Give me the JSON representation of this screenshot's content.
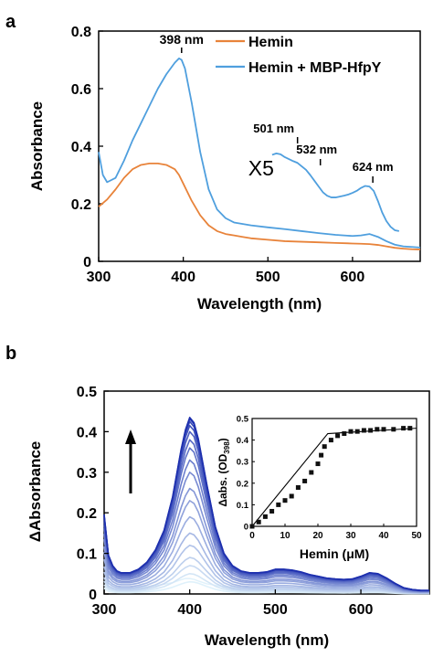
{
  "panel_labels": [
    "a",
    "b"
  ],
  "colors": {
    "hemin": "#e8833a",
    "complex": "#4f9fde",
    "titration_start": "#dff1fb",
    "titration_end": "#1d2fae",
    "inset_points": "#111111",
    "axis": "#000000"
  },
  "chart_data": [
    {
      "id": "panel-a",
      "type": "line",
      "xlabel": "Wavelength (nm)",
      "ylabel": "Absorbance",
      "xlim": [
        300,
        680
      ],
      "ylim": [
        0,
        0.8
      ],
      "xticks": [
        300,
        400,
        500,
        600
      ],
      "yticks": [
        0,
        0.2,
        0.4,
        0.6,
        0.8
      ],
      "ytick_labels": [
        "0",
        "0.2",
        "0.4",
        "0.6",
        "0.8"
      ],
      "grid": false,
      "legend_position": "top-right",
      "series": [
        {
          "name": "Hemin",
          "x": [
            300,
            310,
            320,
            330,
            340,
            350,
            360,
            370,
            380,
            390,
            395,
            400,
            410,
            420,
            430,
            440,
            450,
            460,
            470,
            480,
            500,
            520,
            540,
            560,
            580,
            600,
            610,
            620,
            630,
            640,
            650,
            660,
            670,
            680
          ],
          "y": [
            0.19,
            0.215,
            0.25,
            0.29,
            0.32,
            0.335,
            0.34,
            0.34,
            0.335,
            0.32,
            0.3,
            0.27,
            0.21,
            0.16,
            0.125,
            0.105,
            0.095,
            0.09,
            0.085,
            0.08,
            0.075,
            0.07,
            0.068,
            0.066,
            0.064,
            0.062,
            0.061,
            0.06,
            0.057,
            0.052,
            0.047,
            0.044,
            0.042,
            0.041
          ]
        },
        {
          "name": "Hemin + MBP-HfpY",
          "x": [
            300,
            305,
            310,
            320,
            330,
            340,
            350,
            360,
            370,
            380,
            390,
            395,
            398,
            402,
            410,
            420,
            430,
            440,
            450,
            460,
            480,
            500,
            520,
            540,
            560,
            580,
            600,
            610,
            620,
            630,
            640,
            650,
            660,
            680
          ],
          "y": [
            0.38,
            0.3,
            0.275,
            0.29,
            0.35,
            0.42,
            0.48,
            0.54,
            0.6,
            0.65,
            0.69,
            0.705,
            0.7,
            0.67,
            0.55,
            0.38,
            0.25,
            0.18,
            0.15,
            0.135,
            0.125,
            0.118,
            0.112,
            0.105,
            0.098,
            0.092,
            0.088,
            0.09,
            0.095,
            0.085,
            0.07,
            0.058,
            0.052,
            0.048
          ]
        },
        {
          "name": "X5",
          "x": [
            505,
            510,
            515,
            520,
            525,
            530,
            535,
            540,
            545,
            550,
            555,
            560,
            565,
            570,
            575,
            580,
            585,
            590,
            595,
            600,
            605,
            610,
            615,
            620,
            625,
            630,
            635,
            640,
            645,
            650,
            655
          ],
          "y": [
            0.37,
            0.375,
            0.372,
            0.362,
            0.355,
            0.348,
            0.342,
            0.33,
            0.318,
            0.3,
            0.28,
            0.26,
            0.24,
            0.228,
            0.222,
            0.222,
            0.225,
            0.228,
            0.232,
            0.238,
            0.245,
            0.255,
            0.262,
            0.26,
            0.245,
            0.21,
            0.17,
            0.14,
            0.12,
            0.108,
            0.105
          ]
        }
      ],
      "annotations": [
        {
          "text": "398 nm",
          "x": 398
        },
        {
          "text": "501 nm",
          "x": 535
        },
        {
          "text": "532 nm",
          "x": 562
        },
        {
          "text": "624 nm",
          "x": 624
        },
        {
          "text": "X5",
          "x": 492
        }
      ]
    },
    {
      "id": "panel-b",
      "type": "line",
      "xlabel": "Wavelength (nm)",
      "ylabel": "ΔAbsorbance",
      "xlim": [
        300,
        680
      ],
      "ylim": [
        0,
        0.5
      ],
      "xticks": [
        300,
        400,
        500,
        600
      ],
      "yticks": [
        0,
        0.1,
        0.2,
        0.3,
        0.4,
        0.5
      ],
      "ytick_labels": [
        "0",
        "0.1",
        "0.2",
        "0.3",
        "0.4",
        "0.5"
      ],
      "grid": false,
      "titration_peaks": [
        0.03,
        0.05,
        0.07,
        0.09,
        0.12,
        0.15,
        0.19,
        0.23,
        0.26,
        0.3,
        0.33,
        0.36,
        0.38,
        0.4,
        0.415,
        0.425,
        0.432,
        0.435
      ],
      "shape_x": [
        300,
        305,
        310,
        315,
        320,
        330,
        340,
        350,
        360,
        370,
        380,
        390,
        395,
        400,
        405,
        410,
        420,
        430,
        440,
        450,
        460,
        470,
        480,
        490,
        500,
        510,
        520,
        530,
        540,
        550,
        560,
        570,
        580,
        590,
        600,
        610,
        620,
        630,
        640,
        650,
        660,
        670,
        680
      ],
      "shape_y": [
        0.45,
        0.22,
        0.16,
        0.13,
        0.12,
        0.12,
        0.14,
        0.18,
        0.25,
        0.36,
        0.55,
        0.82,
        0.93,
        1.0,
        0.97,
        0.88,
        0.62,
        0.38,
        0.23,
        0.16,
        0.13,
        0.12,
        0.12,
        0.125,
        0.14,
        0.14,
        0.135,
        0.125,
        0.11,
        0.1,
        0.09,
        0.085,
        0.082,
        0.085,
        0.1,
        0.12,
        0.115,
        0.09,
        0.06,
        0.035,
        0.025,
        0.02,
        0.02
      ],
      "baseline_x": [
        300,
        310,
        320,
        340,
        360,
        380,
        390,
        395,
        400,
        405,
        410,
        420,
        440,
        480,
        520,
        560,
        600,
        640,
        680
      ],
      "baseline_y": [
        0.015,
        0.012,
        0.012,
        0.015,
        0.02,
        0.028,
        0.035,
        0.038,
        0.038,
        0.036,
        0.032,
        0.025,
        0.018,
        0.014,
        0.012,
        0.01,
        0.009,
        0.008,
        0.008
      ]
    },
    {
      "id": "panel-b-inset",
      "type": "scatter",
      "xlabel": "Hemin (μM)",
      "ylabel": "Δabs. (OD398)",
      "ylabel_main": "Δabs. (OD",
      "ylabel_sub": "398",
      "ylabel_close": ")",
      "xlim": [
        0,
        50
      ],
      "ylim": [
        0,
        0.5
      ],
      "xticks": [
        0,
        10,
        20,
        30,
        40,
        50
      ],
      "yticks": [
        0,
        0.1,
        0.2,
        0.3,
        0.4,
        0.5
      ],
      "ytick_labels": [
        "0",
        "0.1",
        "0.2",
        "0.3",
        "0.4",
        "0.5"
      ],
      "points": {
        "x": [
          0,
          2,
          4,
          6,
          8,
          10,
          12,
          14,
          16,
          18,
          20,
          21,
          22,
          24,
          26,
          28,
          30,
          32,
          34,
          36,
          38,
          40,
          43,
          46,
          48
        ],
        "y": [
          0.0,
          0.02,
          0.045,
          0.07,
          0.1,
          0.12,
          0.14,
          0.18,
          0.21,
          0.25,
          0.29,
          0.33,
          0.37,
          0.4,
          0.42,
          0.43,
          0.44,
          0.44,
          0.445,
          0.445,
          0.45,
          0.45,
          0.45,
          0.455,
          0.455
        ]
      },
      "fit": {
        "x": [
          0,
          23,
          50
        ],
        "y": [
          0.0,
          0.43,
          0.455
        ]
      }
    }
  ]
}
